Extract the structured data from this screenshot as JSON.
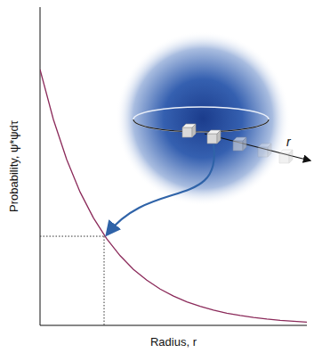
{
  "chart_data": {
    "type": "line",
    "x_label": "Radius, r",
    "y_label": "Probability, ψ*ψdτ",
    "annotations": [
      {
        "text": "r"
      }
    ],
    "x": [
      0,
      0.5,
      1,
      1.5,
      2,
      2.5,
      3,
      3.5,
      4,
      4.5,
      5,
      5.5,
      6,
      6.5,
      7,
      7.5,
      8,
      8.5,
      9,
      9.5,
      10
    ],
    "values": [
      8.04,
      6.47,
      5.21,
      4.19,
      3.38,
      2.72,
      2.19,
      1.76,
      1.42,
      1.14,
      0.92,
      0.74,
      0.6,
      0.48,
      0.38,
      0.31,
      0.25,
      0.2,
      0.16,
      0.13,
      0.1
    ],
    "color": "#8b2a5a",
    "highlight": {
      "x": 2.4,
      "y": 2.8
    },
    "xlim": [
      0,
      10
    ],
    "ylim": [
      0,
      10
    ],
    "tick_labels": false,
    "grid": false
  }
}
